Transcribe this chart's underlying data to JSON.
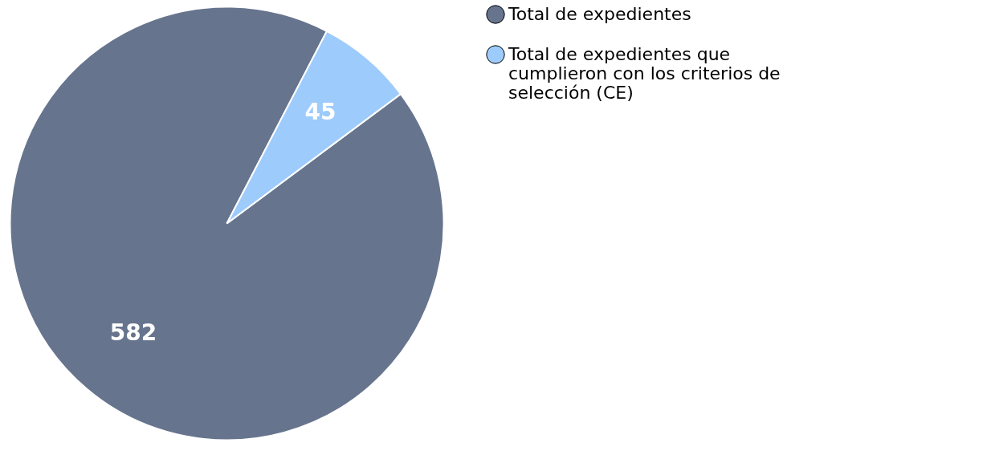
{
  "chart_data": {
    "type": "pie",
    "categories": [
      "Total de expedientes",
      "Total de expedientes que cumplieron con los criterios de selección (CE)"
    ],
    "values": [
      582,
      45
    ],
    "colors": [
      "#67748d",
      "#9dcbfb"
    ],
    "data_labels": true,
    "legend": "right"
  }
}
